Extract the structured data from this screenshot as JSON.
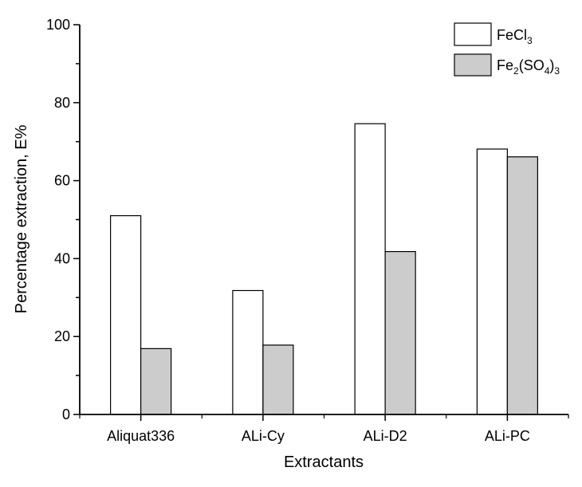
{
  "chart_data": {
    "type": "bar",
    "title": "",
    "xlabel": "Extractants",
    "ylabel": "Percentage extraction, E%",
    "categories": [
      "Aliquat336",
      "ALi-Cy",
      "ALi-D2",
      "ALi-PC"
    ],
    "series": [
      {
        "name": "FeCl3",
        "label_main": "FeCl",
        "label_sub": "3",
        "color": "#ffffff",
        "values": [
          51,
          31.8,
          74.6,
          68.1
        ]
      },
      {
        "name": "Fe2(SO4)3",
        "label_parts": [
          "Fe",
          "2",
          "(SO",
          "4",
          ")",
          "3"
        ],
        "color": "#cccccc",
        "values": [
          16.9,
          17.8,
          41.8,
          66.1
        ]
      }
    ],
    "ylim": [
      0,
      100
    ],
    "yticks": [
      0,
      20,
      40,
      60,
      80,
      100
    ],
    "grid": false,
    "legend": "top-right"
  }
}
